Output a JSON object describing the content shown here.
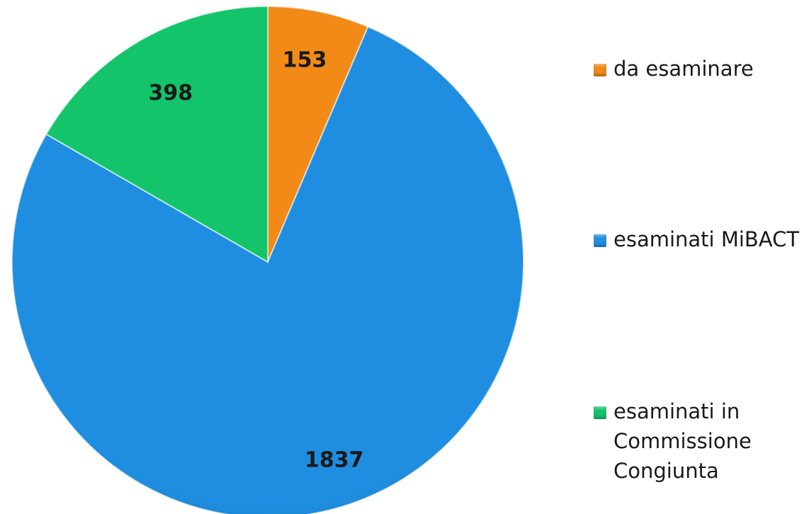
{
  "chart_data": {
    "type": "pie",
    "categories": [
      "da esaminare",
      "esaminati MiBACT",
      "esaminati in Commissione Congiunta"
    ],
    "values": [
      153,
      1837,
      398
    ],
    "data_labels": [
      "153",
      "1837",
      "398"
    ],
    "colors": [
      "#f28a17",
      "#1f8ee0",
      "#13c46a"
    ],
    "title": "",
    "legend_position": "right",
    "start_angle": "12 o'clock",
    "direction": "clockwise"
  },
  "legend": {
    "items": [
      {
        "label": "da esaminare",
        "color": "#f28a17"
      },
      {
        "label": "esaminati MiBACT",
        "color": "#1f8ee0"
      },
      {
        "label": "esaminati in Commissione Congiunta",
        "color": "#13c46a"
      }
    ]
  }
}
